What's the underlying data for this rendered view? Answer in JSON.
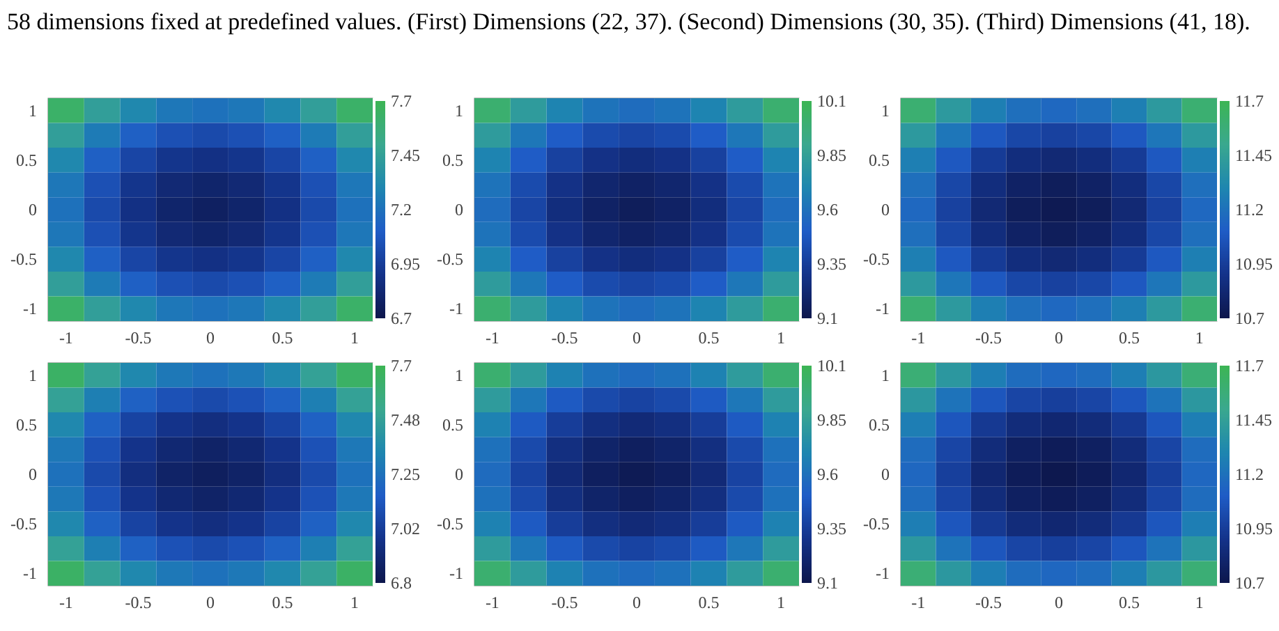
{
  "chart_data": [
    {
      "type": "heatmap",
      "title": "58 dimensions fixed at predefined values. (First) Dimensions (22, 37). (Second) Dimensions (30, 35). (Third) Dimensions (41, 18).",
      "categories": [
        "-1",
        null,
        "-0.5",
        null,
        "0",
        null,
        "0.5",
        null,
        "1"
      ],
      "y_categories": [
        "1",
        null,
        "0.5",
        null,
        "0",
        null,
        "-0.5",
        null,
        "-1"
      ],
      "clim": [
        6.7,
        7.7
      ],
      "cticks": [
        6.7,
        6.95,
        7.2,
        7.45,
        7.7
      ],
      "cells": [
        [
          7.63,
          7.44,
          7.31,
          7.23,
          7.2,
          7.23,
          7.31,
          7.44,
          7.63
        ],
        [
          7.44,
          7.25,
          7.12,
          7.04,
          7.01,
          7.04,
          7.12,
          7.25,
          7.44
        ],
        [
          7.31,
          7.12,
          6.99,
          6.91,
          6.88,
          6.91,
          6.99,
          7.12,
          7.31
        ],
        [
          7.23,
          7.04,
          6.91,
          6.83,
          6.8,
          6.83,
          6.91,
          7.04,
          7.23
        ],
        [
          7.2,
          7.01,
          6.88,
          6.8,
          6.77,
          6.8,
          6.88,
          7.01,
          7.2
        ],
        [
          7.23,
          7.04,
          6.91,
          6.83,
          6.8,
          6.83,
          6.91,
          7.04,
          7.23
        ],
        [
          7.31,
          7.12,
          6.99,
          6.91,
          6.88,
          6.91,
          6.99,
          7.12,
          7.31
        ],
        [
          7.44,
          7.25,
          7.12,
          7.04,
          7.01,
          7.04,
          7.12,
          7.25,
          7.44
        ],
        [
          7.63,
          7.44,
          7.31,
          7.23,
          7.2,
          7.23,
          7.31,
          7.44,
          7.63
        ]
      ]
    },
    {
      "type": "heatmap",
      "categories": [
        "-1",
        null,
        "-0.5",
        null,
        "0",
        null,
        "0.5",
        null,
        "1"
      ],
      "y_categories": [
        "1",
        null,
        "0.5",
        null,
        "0",
        null,
        "-0.5",
        null,
        "-1"
      ],
      "clim": [
        9.1,
        10.1
      ],
      "cticks": [
        9.1,
        9.35,
        9.6,
        9.85,
        10.1
      ],
      "cells": [
        [
          10.01,
          9.82,
          9.69,
          9.61,
          9.58,
          9.61,
          9.69,
          9.82,
          10.01
        ],
        [
          9.82,
          9.63,
          9.5,
          9.42,
          9.39,
          9.42,
          9.5,
          9.63,
          9.82
        ],
        [
          9.69,
          9.5,
          9.37,
          9.29,
          9.26,
          9.29,
          9.37,
          9.5,
          9.69
        ],
        [
          9.61,
          9.42,
          9.29,
          9.21,
          9.18,
          9.21,
          9.29,
          9.42,
          9.61
        ],
        [
          9.58,
          9.39,
          9.26,
          9.18,
          9.15,
          9.18,
          9.26,
          9.39,
          9.58
        ],
        [
          9.61,
          9.42,
          9.29,
          9.21,
          9.18,
          9.21,
          9.29,
          9.42,
          9.61
        ],
        [
          9.69,
          9.5,
          9.37,
          9.29,
          9.26,
          9.29,
          9.37,
          9.5,
          9.69
        ],
        [
          9.82,
          9.63,
          9.5,
          9.42,
          9.39,
          9.42,
          9.5,
          9.63,
          9.82
        ],
        [
          10.01,
          9.82,
          9.69,
          9.61,
          9.58,
          9.61,
          9.69,
          9.82,
          10.01
        ]
      ]
    },
    {
      "type": "heatmap",
      "categories": [
        "-1",
        null,
        "-0.5",
        null,
        "0",
        null,
        "0.5",
        null,
        "1"
      ],
      "y_categories": [
        "1",
        null,
        "0.5",
        null,
        "0",
        null,
        "-0.5",
        null,
        "-1"
      ],
      "clim": [
        10.7,
        11.7
      ],
      "cticks": [
        10.7,
        10.95,
        11.2,
        11.45,
        11.7
      ],
      "cells": [
        [
          11.6,
          11.41,
          11.27,
          11.19,
          11.16,
          11.19,
          11.27,
          11.41,
          11.6
        ],
        [
          11.41,
          11.22,
          11.08,
          11.0,
          10.97,
          11.0,
          11.08,
          11.22,
          11.41
        ],
        [
          11.27,
          11.08,
          10.94,
          10.86,
          10.83,
          10.86,
          10.94,
          11.08,
          11.27
        ],
        [
          11.19,
          11.0,
          10.86,
          10.78,
          10.75,
          10.78,
          10.86,
          11.0,
          11.19
        ],
        [
          11.16,
          10.97,
          10.83,
          10.75,
          10.72,
          10.75,
          10.83,
          10.97,
          11.16
        ],
        [
          11.19,
          11.0,
          10.86,
          10.78,
          10.75,
          10.78,
          10.86,
          11.0,
          11.19
        ],
        [
          11.27,
          11.08,
          10.94,
          10.86,
          10.83,
          10.86,
          10.94,
          11.08,
          11.27
        ],
        [
          11.41,
          11.22,
          11.08,
          11.0,
          10.97,
          11.0,
          11.08,
          11.22,
          11.41
        ],
        [
          11.6,
          11.41,
          11.27,
          11.19,
          11.16,
          11.19,
          11.27,
          11.41,
          11.6
        ]
      ]
    },
    {
      "type": "heatmap",
      "categories": [
        "-1",
        null,
        "-0.5",
        null,
        "0",
        null,
        "0.5",
        null,
        "1"
      ],
      "y_categories": [
        "1",
        null,
        "0.5",
        null,
        "0",
        null,
        "-0.5",
        null,
        "-1"
      ],
      "clim": [
        6.8,
        7.7
      ],
      "cticks": [
        6.8,
        {
          "value": 7.025,
          "label": "7.02"
        },
        7.25,
        {
          "value": 7.475,
          "label": "7.48"
        },
        7.7
      ],
      "cells": [
        [
          7.65,
          7.48,
          7.35,
          7.28,
          7.25,
          7.28,
          7.35,
          7.48,
          7.65
        ],
        [
          7.48,
          7.31,
          7.18,
          7.11,
          7.08,
          7.11,
          7.18,
          7.31,
          7.48
        ],
        [
          7.35,
          7.18,
          7.05,
          6.98,
          6.95,
          6.98,
          7.05,
          7.18,
          7.35
        ],
        [
          7.28,
          7.11,
          6.98,
          6.91,
          6.88,
          6.91,
          6.98,
          7.11,
          7.28
        ],
        [
          7.25,
          7.08,
          6.95,
          6.88,
          6.85,
          6.88,
          6.95,
          7.08,
          7.25
        ],
        [
          7.28,
          7.11,
          6.98,
          6.91,
          6.88,
          6.91,
          6.98,
          7.11,
          7.28
        ],
        [
          7.35,
          7.18,
          7.05,
          6.98,
          6.95,
          6.98,
          7.05,
          7.18,
          7.35
        ],
        [
          7.48,
          7.31,
          7.18,
          7.11,
          7.08,
          7.11,
          7.18,
          7.31,
          7.48
        ],
        [
          7.65,
          7.48,
          7.35,
          7.28,
          7.25,
          7.28,
          7.35,
          7.48,
          7.65
        ]
      ]
    },
    {
      "type": "heatmap",
      "categories": [
        "-1",
        null,
        "-0.5",
        null,
        "0",
        null,
        "0.5",
        null,
        "1"
      ],
      "y_categories": [
        "1",
        null,
        "0.5",
        null,
        "0",
        null,
        "-0.5",
        null,
        "-1"
      ],
      "clim": [
        9.1,
        10.1
      ],
      "cticks": [
        9.1,
        9.35,
        9.6,
        9.85,
        10.1
      ],
      "cells": [
        [
          10.01,
          9.82,
          9.68,
          9.6,
          9.57,
          9.6,
          9.68,
          9.82,
          10.01
        ],
        [
          9.82,
          9.63,
          9.49,
          9.41,
          9.38,
          9.41,
          9.49,
          9.63,
          9.82
        ],
        [
          9.68,
          9.49,
          9.35,
          9.27,
          9.24,
          9.27,
          9.35,
          9.49,
          9.68
        ],
        [
          9.6,
          9.41,
          9.27,
          9.19,
          9.16,
          9.19,
          9.27,
          9.41,
          9.6
        ],
        [
          9.57,
          9.38,
          9.24,
          9.16,
          9.13,
          9.16,
          9.24,
          9.38,
          9.57
        ],
        [
          9.6,
          9.41,
          9.27,
          9.19,
          9.16,
          9.19,
          9.27,
          9.41,
          9.6
        ],
        [
          9.68,
          9.49,
          9.35,
          9.27,
          9.24,
          9.27,
          9.35,
          9.49,
          9.68
        ],
        [
          9.82,
          9.63,
          9.49,
          9.41,
          9.38,
          9.41,
          9.49,
          9.63,
          9.82
        ],
        [
          10.01,
          9.82,
          9.68,
          9.6,
          9.57,
          9.6,
          9.68,
          9.82,
          10.01
        ]
      ]
    },
    {
      "type": "heatmap",
      "categories": [
        "-1",
        null,
        "-0.5",
        null,
        "0",
        null,
        "0.5",
        null,
        "1"
      ],
      "y_categories": [
        "1",
        null,
        "0.5",
        null,
        "0",
        null,
        "-0.5",
        null,
        "-1"
      ],
      "clim": [
        10.7,
        11.7
      ],
      "cticks": [
        10.7,
        10.95,
        11.2,
        11.45,
        11.7
      ],
      "cells": [
        [
          11.59,
          11.4,
          11.26,
          11.18,
          11.15,
          11.18,
          11.26,
          11.4,
          11.59
        ],
        [
          11.4,
          11.21,
          11.07,
          10.99,
          10.96,
          10.99,
          11.07,
          11.21,
          11.4
        ],
        [
          11.26,
          11.07,
          10.93,
          10.85,
          10.82,
          10.85,
          10.93,
          11.07,
          11.26
        ],
        [
          11.18,
          10.99,
          10.85,
          10.77,
          10.74,
          10.77,
          10.85,
          10.99,
          11.18
        ],
        [
          11.15,
          10.96,
          10.82,
          10.74,
          10.71,
          10.74,
          10.82,
          10.96,
          11.15
        ],
        [
          11.18,
          10.99,
          10.85,
          10.77,
          10.74,
          10.77,
          10.85,
          10.99,
          11.18
        ],
        [
          11.26,
          11.07,
          10.93,
          10.85,
          10.82,
          10.85,
          10.93,
          11.07,
          11.26
        ],
        [
          11.4,
          11.21,
          11.07,
          10.99,
          10.96,
          10.99,
          11.07,
          11.21,
          11.4
        ],
        [
          11.59,
          11.4,
          11.26,
          11.18,
          11.15,
          11.18,
          11.26,
          11.4,
          11.59
        ]
      ]
    }
  ]
}
